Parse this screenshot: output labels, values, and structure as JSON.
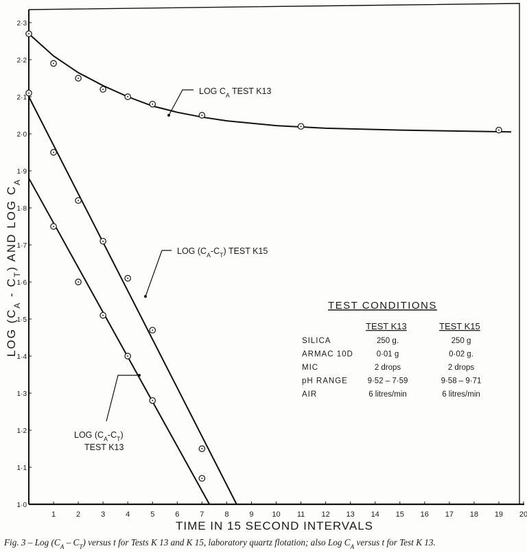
{
  "chart_data": {
    "type": "line",
    "title": "",
    "xlabel": "TIME IN 15 SECOND INTERVALS",
    "ylabel_parts": [
      {
        "t": "LOG (C"
      },
      {
        "t": "A",
        "sub": true
      },
      {
        "t": " - C"
      },
      {
        "t": "T",
        "sub": true
      },
      {
        "t": ")   AND   LOG C"
      },
      {
        "t": "A",
        "sub": true
      }
    ],
    "xlim": [
      0,
      20
    ],
    "ylim": [
      1.0,
      2.34
    ],
    "x_ticks": [
      1,
      2,
      3,
      4,
      5,
      6,
      7,
      8,
      9,
      10,
      11,
      12,
      13,
      14,
      15,
      16,
      17,
      18,
      19,
      20
    ],
    "y_ticks": [
      {
        "v": 1.0,
        "label": "1·0"
      },
      {
        "v": 1.1,
        "label": "1·1"
      },
      {
        "v": 1.2,
        "label": "1·2"
      },
      {
        "v": 1.3,
        "label": "1·3"
      },
      {
        "v": 1.4,
        "label": "1·4"
      },
      {
        "v": 1.5,
        "label": "1·5"
      },
      {
        "v": 1.6,
        "label": "1·6"
      },
      {
        "v": 1.7,
        "label": "1·7"
      },
      {
        "v": 1.8,
        "label": "1·8"
      },
      {
        "v": 1.9,
        "label": "1·9"
      },
      {
        "v": 2.0,
        "label": "2·0"
      },
      {
        "v": 2.1,
        "label": "2·1"
      },
      {
        "v": 2.2,
        "label": "2·2"
      },
      {
        "v": 2.3,
        "label": "2·3"
      }
    ],
    "grid": false,
    "series": [
      {
        "name": "Log C_A Test K13",
        "points": [
          [
            0,
            2.27
          ],
          [
            1,
            2.19
          ],
          [
            2,
            2.15
          ],
          [
            3,
            2.12
          ],
          [
            4,
            2.1
          ],
          [
            5,
            2.08
          ],
          [
            7,
            2.05
          ],
          [
            11,
            2.02
          ],
          [
            19,
            2.01
          ]
        ],
        "fit": "curve",
        "fit_line": [
          [
            0,
            2.27
          ],
          [
            1,
            2.21
          ],
          [
            2,
            2.165
          ],
          [
            3,
            2.13
          ],
          [
            4,
            2.1
          ],
          [
            5,
            2.075
          ],
          [
            6,
            2.058
          ],
          [
            7,
            2.045
          ],
          [
            8,
            2.035
          ],
          [
            10,
            2.022
          ],
          [
            12,
            2.015
          ],
          [
            15,
            2.01
          ],
          [
            19.5,
            2.005
          ]
        ]
      },
      {
        "name": "Log (C_A - C_T) Test K15",
        "points": [
          [
            0,
            2.11
          ],
          [
            1,
            1.95
          ],
          [
            2,
            1.82
          ],
          [
            3,
            1.71
          ],
          [
            4,
            1.61
          ],
          [
            5,
            1.47
          ],
          [
            7,
            1.15
          ]
        ],
        "fit": "linear",
        "fit_line": [
          [
            0,
            2.1
          ],
          [
            8.4,
            1.0
          ]
        ]
      },
      {
        "name": "Log (C_A - C_T) Test K13",
        "points": [
          [
            1,
            1.75
          ],
          [
            2,
            1.6
          ],
          [
            3,
            1.51
          ],
          [
            4,
            1.4
          ],
          [
            5,
            1.28
          ],
          [
            7,
            1.07
          ]
        ],
        "fit": "linear",
        "fit_line": [
          [
            0,
            1.88
          ],
          [
            7.3,
            1.0
          ]
        ]
      }
    ],
    "annotations": [
      {
        "name": "label-log-ca-k13",
        "lines": [
          [
            {
              "t": "LOG  C"
            },
            {
              "t": "A",
              "sub": true
            },
            {
              "t": "  TEST K13"
            }
          ]
        ]
      },
      {
        "name": "label-log-ca-ct-k15",
        "lines": [
          [
            {
              "t": "LOG (C"
            },
            {
              "t": "A",
              "sub": true
            },
            {
              "t": "-C"
            },
            {
              "t": "T",
              "sub": true
            },
            {
              "t": ")  TEST K15"
            }
          ]
        ]
      },
      {
        "name": "label-log-ca-ct-k13",
        "lines": [
          [
            {
              "t": "LOG  (C"
            },
            {
              "t": "A",
              "sub": true
            },
            {
              "t": "-C"
            },
            {
              "t": "T",
              "sub": true
            },
            {
              "t": ")"
            }
          ],
          [
            {
              "t": "TEST K13"
            }
          ]
        ]
      }
    ]
  },
  "test_conditions": {
    "title": "TEST CONDITIONS",
    "columns": [
      "TEST K13",
      "TEST K15"
    ],
    "rows": [
      {
        "label": "SILICA",
        "k13": "250 g.",
        "k15": "250 g"
      },
      {
        "label": "ARMAC 10D",
        "k13": "0·01 g",
        "k15": "0·02 g."
      },
      {
        "label": "MIC",
        "k13": "2 drops",
        "k15": "2 drops"
      },
      {
        "label": "pH RANGE",
        "k13": "9·52 – 7·59",
        "k15": "9·58 – 9·71"
      },
      {
        "label": "AIR",
        "k13": "6 litres/min",
        "k15": "6 litres/min"
      }
    ]
  },
  "caption": "Fig. 3 – Log (C_A – C_T) versus t for Tests K 13 and K 15, laboratory quartz flotation; also Log C_A versus t for Test K 13.",
  "caption_parts": [
    {
      "t": "Fig. 3 – Log (C"
    },
    {
      "t": "A",
      "sub": true
    },
    {
      "t": " – C"
    },
    {
      "t": "T",
      "sub": true
    },
    {
      "t": ") versus t for Tests K 13 and K 15, laboratory quartz flotation; also Log C"
    },
    {
      "t": "A",
      "sub": true
    },
    {
      "t": " versus t for Test K 13."
    }
  ]
}
